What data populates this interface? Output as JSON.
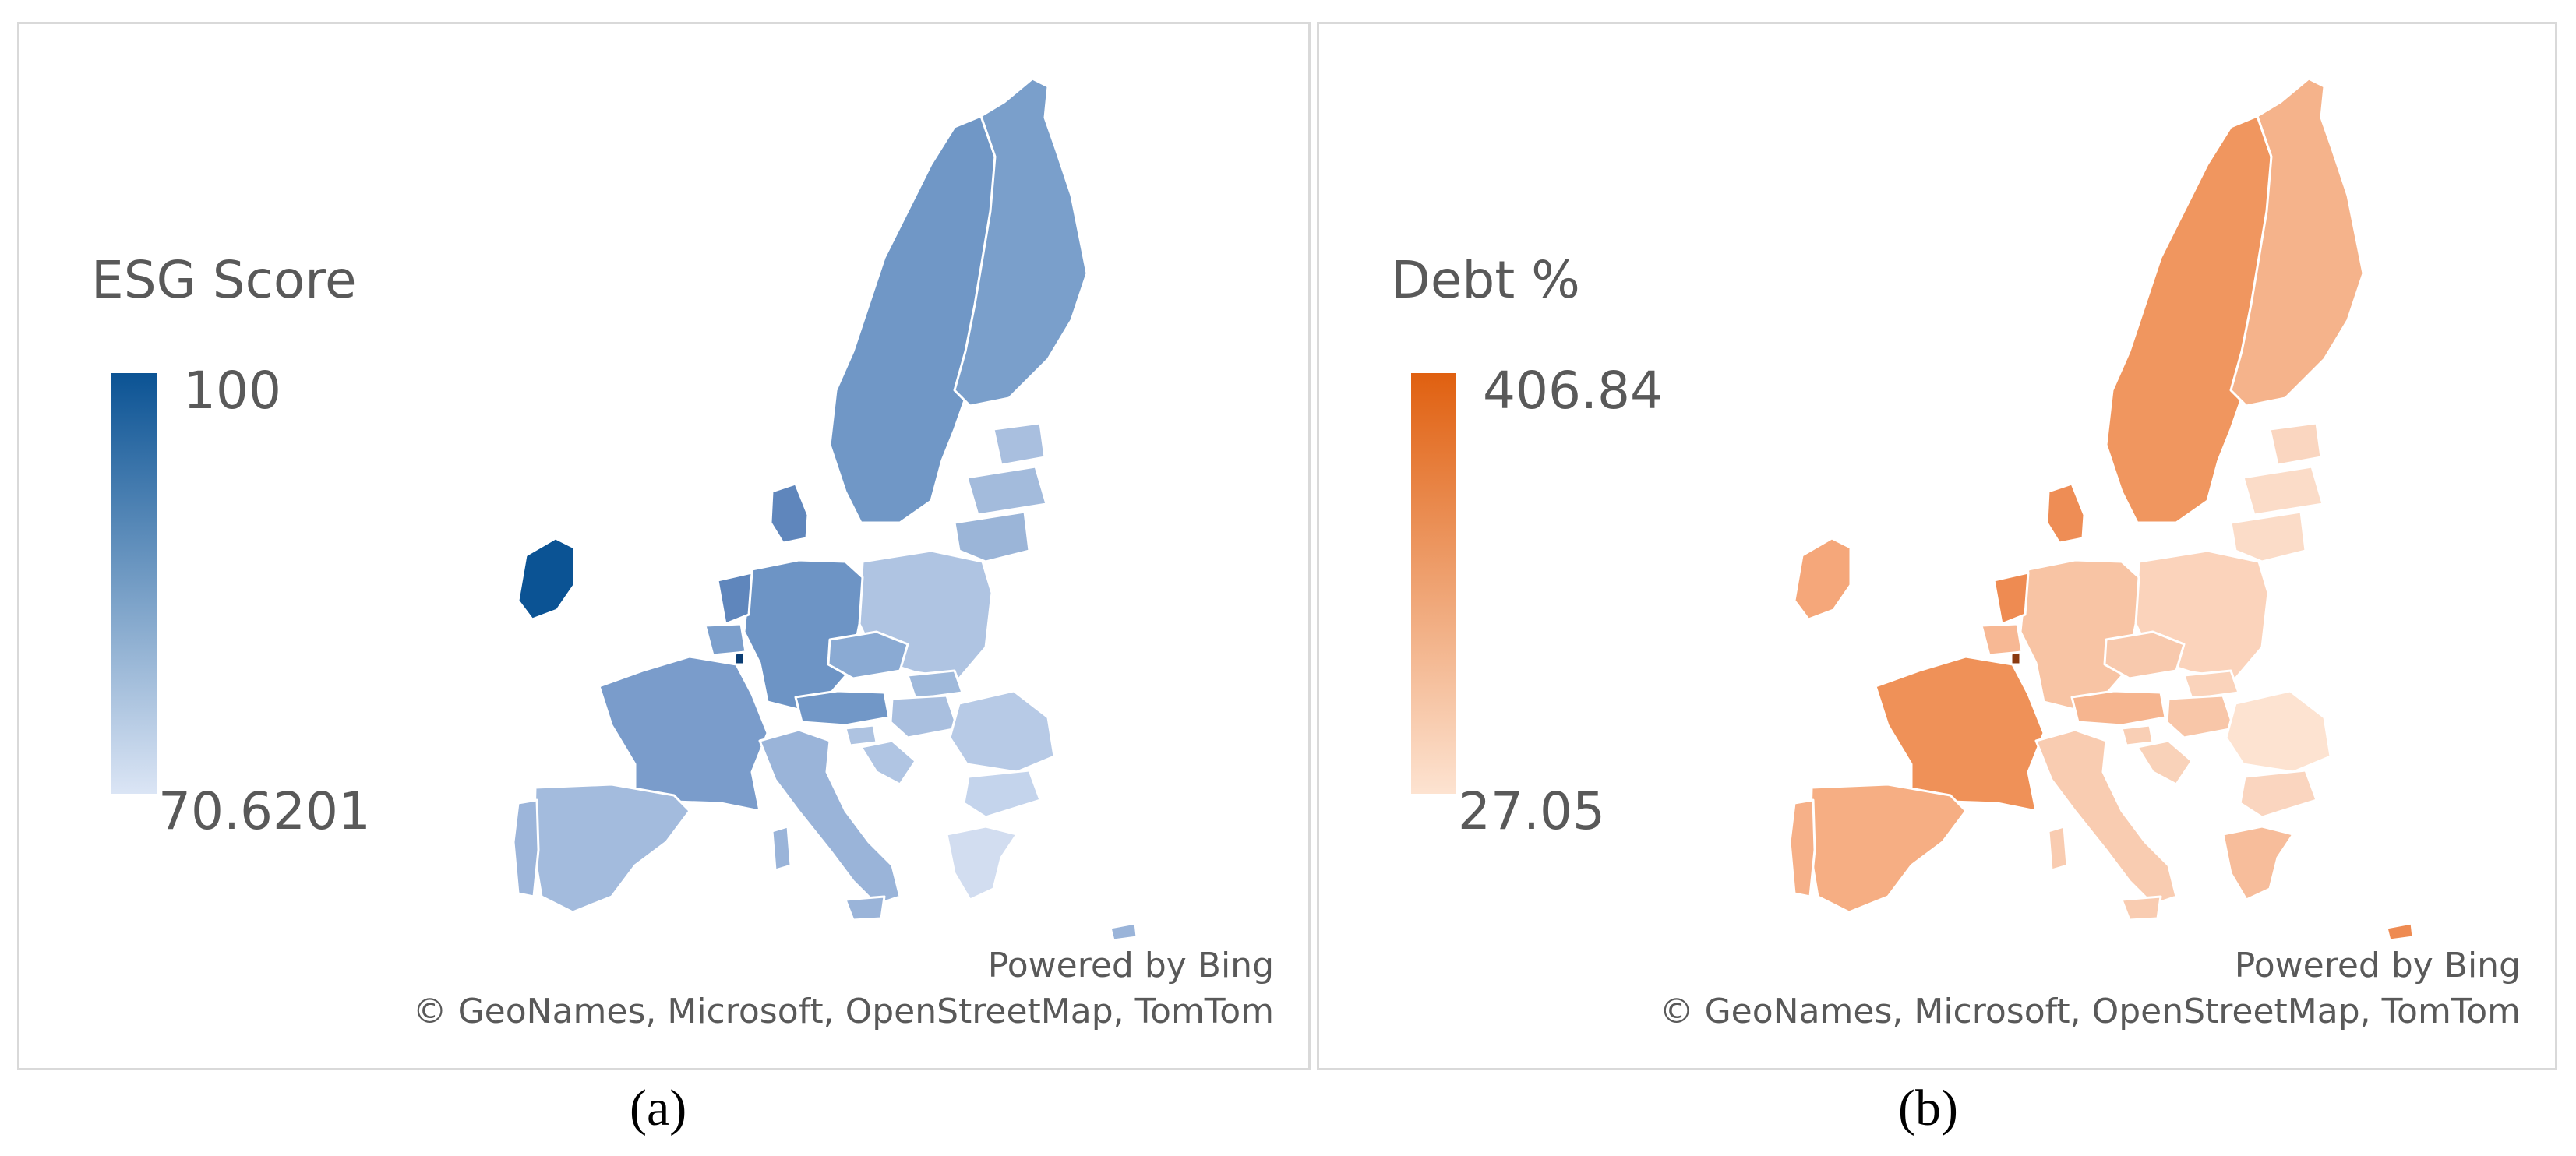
{
  "panels": [
    {
      "id": "a",
      "legend_title": "ESG Score",
      "legend_max": "100",
      "legend_min": "70.6201",
      "ramp_color_high": "#0b5394",
      "ramp_color_low": "#dbe5f5",
      "credit_line1": "Powered by Bing",
      "credit_line2": "© GeoNames, Microsoft, OpenStreetMap, TomTom",
      "caption": "(a)"
    },
    {
      "id": "b",
      "legend_title": "Debt %",
      "legend_max": "406.84",
      "legend_min": "27.05",
      "ramp_color_high": "#e06010",
      "ramp_color_low": "#fde3d1",
      "credit_line1": "Powered by Bing",
      "credit_line2": "© GeoNames, Microsoft, OpenStreetMap, TomTom",
      "caption": "(b)"
    }
  ]
}
